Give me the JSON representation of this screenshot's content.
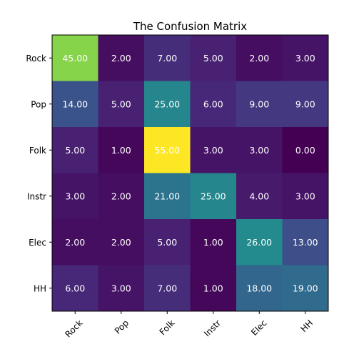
{
  "chart_data": {
    "type": "heatmap",
    "title": "The Confusion Matrix",
    "xlabel": "",
    "ylabel": "",
    "row_labels": [
      "Rock",
      "Pop",
      "Folk",
      "Instr",
      "Elec",
      "HH"
    ],
    "col_labels": [
      "Rock",
      "Pop",
      "Folk",
      "Instr",
      "Elec",
      "HH"
    ],
    "values": [
      [
        45,
        2,
        7,
        5,
        2,
        3
      ],
      [
        14,
        5,
        25,
        6,
        9,
        9
      ],
      [
        5,
        1,
        55,
        3,
        3,
        0
      ],
      [
        3,
        2,
        21,
        25,
        4,
        3
      ],
      [
        2,
        2,
        5,
        1,
        26,
        13
      ],
      [
        6,
        3,
        7,
        1,
        18,
        19
      ]
    ],
    "value_format": "2 decimals",
    "value_range": [
      0,
      55
    ],
    "colormap": "viridis",
    "grid": false,
    "x_tick_rotation_deg": 45
  }
}
